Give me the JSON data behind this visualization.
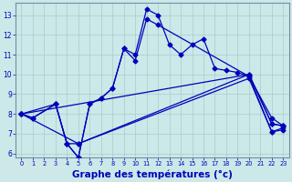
{
  "background_color": "#cce8e8",
  "grid_color": "#aacccc",
  "line_color": "#0000bb",
  "xlabel": "Graphe des températures (°c)",
  "xlabel_fontsize": 7.5,
  "ytick_labels": [
    "6",
    "7",
    "8",
    "9",
    "10",
    "11",
    "12",
    "13"
  ],
  "ytick_values": [
    6,
    7,
    8,
    9,
    10,
    11,
    12,
    13
  ],
  "xtick_values": [
    0,
    1,
    2,
    3,
    4,
    5,
    6,
    7,
    8,
    9,
    10,
    11,
    12,
    13,
    14,
    15,
    16,
    17,
    18,
    19,
    20,
    21,
    22,
    23
  ],
  "xlim": [
    -0.5,
    23.5
  ],
  "ylim": [
    5.8,
    13.6
  ],
  "line1_x": [
    0,
    1,
    3,
    4,
    5,
    6,
    7,
    8,
    9,
    10,
    11,
    12,
    13,
    14,
    15,
    16,
    17,
    18,
    19,
    20,
    22,
    23
  ],
  "line1_y": [
    8.0,
    7.8,
    8.5,
    6.5,
    5.8,
    8.5,
    8.8,
    9.3,
    11.3,
    11.0,
    13.3,
    13.0,
    11.5,
    11.0,
    11.5,
    11.8,
    10.3,
    10.2,
    10.1,
    9.9,
    7.8,
    7.4
  ],
  "line2_x": [
    0,
    1,
    3,
    4,
    5,
    6,
    7,
    8,
    9,
    10,
    11,
    12,
    20,
    22,
    23
  ],
  "line2_y": [
    8.0,
    7.8,
    8.5,
    6.5,
    5.8,
    8.5,
    8.8,
    9.3,
    11.3,
    10.7,
    12.8,
    12.5,
    9.9,
    7.1,
    7.3
  ],
  "trend1_x": [
    0,
    3,
    4,
    5,
    20,
    22,
    23
  ],
  "trend1_y": [
    8.0,
    8.5,
    6.5,
    6.5,
    10.0,
    7.5,
    7.4
  ],
  "trend2_x": [
    0,
    20,
    22,
    23
  ],
  "trend2_y": [
    8.0,
    10.0,
    7.5,
    7.4
  ],
  "trend3_x": [
    0,
    5,
    20,
    22,
    23
  ],
  "trend3_y": [
    8.0,
    6.5,
    9.8,
    7.1,
    7.2
  ]
}
